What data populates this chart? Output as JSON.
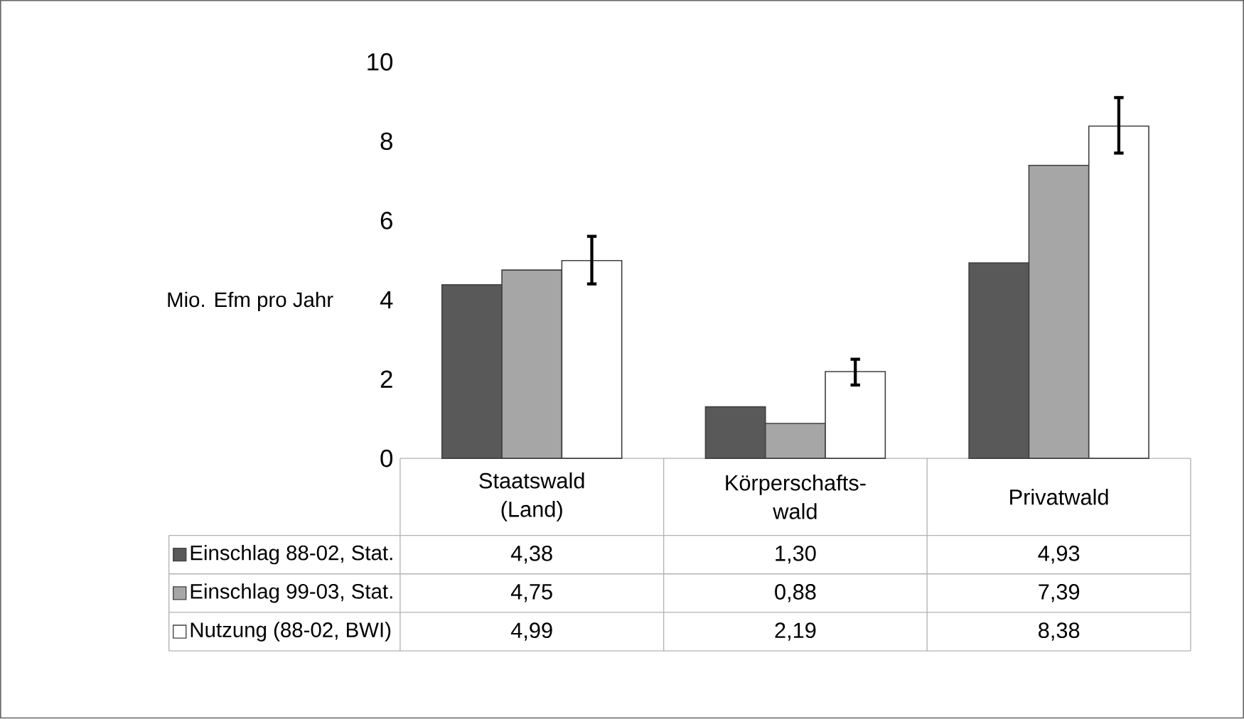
{
  "chart_data": {
    "type": "bar",
    "ylabel": "Mio. Efm pro Jahr",
    "categories": [
      "Staatswald (Land)",
      "Körperschafts-wald",
      "Privatwald"
    ],
    "series": [
      {
        "name": "Einschlag 88-02, Stat.",
        "color": "#595959",
        "values": [
          4.38,
          1.3,
          4.93
        ],
        "value_labels": [
          "4,38",
          "1,30",
          "4,93"
        ]
      },
      {
        "name": "Einschlag 99-03, Stat.",
        "color": "#a6a6a6",
        "values": [
          4.75,
          0.88,
          7.39
        ],
        "value_labels": [
          "4,75",
          "0,88",
          "7,39"
        ]
      },
      {
        "name": "Nutzung (88-02, BWI)",
        "color": "#ffffff",
        "values": [
          4.99,
          2.19,
          8.38
        ],
        "value_labels": [
          "4,99",
          "2,19",
          "8,38"
        ],
        "errors": [
          [
            4.4,
            5.6
          ],
          [
            1.85,
            2.5
          ],
          [
            7.7,
            9.1
          ]
        ]
      }
    ],
    "ylim": [
      0,
      10
    ],
    "yticks": [
      0,
      2,
      4,
      6,
      8,
      10
    ],
    "legend": "bottom"
  }
}
